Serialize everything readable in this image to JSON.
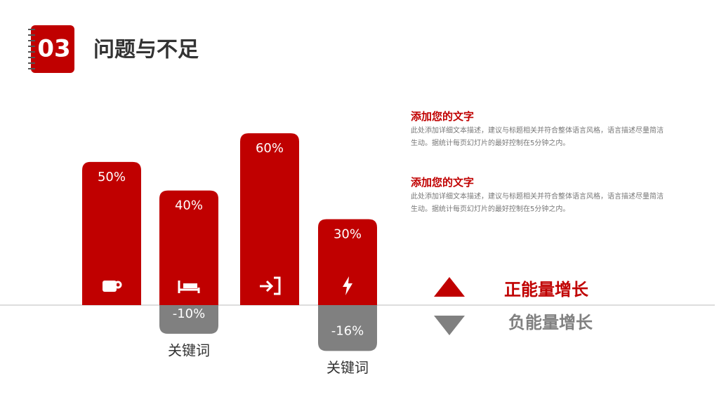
{
  "header": {
    "number": "03",
    "title": "问题与不足"
  },
  "chart_data": {
    "type": "bar",
    "categories": [
      null,
      "关键词",
      null,
      "关键词"
    ],
    "series": [
      {
        "name": "正能量增长",
        "color": "#c00000",
        "values": [
          50,
          40,
          60,
          30
        ],
        "value_labels": [
          "50%",
          "40%",
          "60%",
          "30%"
        ]
      },
      {
        "name": "负能量增长",
        "color": "#808080",
        "values": [
          null,
          -10,
          null,
          -16
        ],
        "value_labels": [
          null,
          "-10%",
          null,
          "-16%"
        ]
      }
    ]
  },
  "text_blocks": [
    {
      "title": "添加您的文字",
      "body": "此处添加详细文本描述，建议与标题相关并符合整体语言风格，语言描述尽量简洁生动。据统计每页幻灯片的最好控制在5分钟之内。"
    },
    {
      "title": "添加您的文字",
      "body": "此处添加详细文本描述，建议与标题相关并符合整体语言风格，语言描述尽量简洁生动。据统计每页幻灯片的最好控制在5分钟之内。"
    }
  ]
}
